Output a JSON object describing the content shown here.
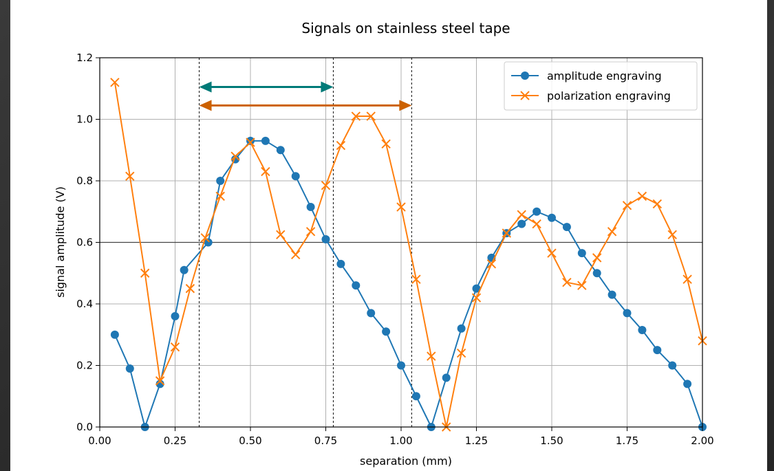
{
  "chart_data": {
    "type": "line",
    "title": "Signals on stainless steel tape",
    "xlabel": "separation (mm)",
    "ylabel": "signal amplitude (V)",
    "xlim": [
      0.0,
      2.0
    ],
    "ylim": [
      0.0,
      1.2
    ],
    "xticks": [
      "0.00",
      "0.25",
      "0.50",
      "0.75",
      "1.00",
      "1.25",
      "1.50",
      "1.75",
      "2.00"
    ],
    "yticks": [
      "0.0",
      "0.2",
      "0.4",
      "0.6",
      "0.8",
      "1.0",
      "1.2"
    ],
    "grid": true,
    "legend_position": "top-right",
    "reference_line_y": 0.6,
    "vertical_dashed_lines_x": [
      0.33,
      0.775,
      1.035
    ],
    "arrows": [
      {
        "x1": 0.33,
        "x2": 0.775,
        "y": 1.105,
        "color": "#007a78"
      },
      {
        "x1": 0.33,
        "x2": 1.035,
        "y": 1.045,
        "color": "#cc6100"
      }
    ],
    "series": [
      {
        "name": "amplitude engraving",
        "color": "#1f77b4",
        "marker": "o",
        "x": [
          0.05,
          0.1,
          0.15,
          0.2,
          0.25,
          0.28,
          0.36,
          0.4,
          0.45,
          0.5,
          0.55,
          0.6,
          0.65,
          0.7,
          0.75,
          0.8,
          0.85,
          0.9,
          0.95,
          1.0,
          1.05,
          1.1,
          1.15,
          1.2,
          1.25,
          1.3,
          1.35,
          1.4,
          1.45,
          1.5,
          1.55,
          1.6,
          1.65,
          1.7,
          1.75,
          1.8,
          1.85,
          1.9,
          1.95,
          2.0
        ],
        "y": [
          0.3,
          0.19,
          0.0,
          0.14,
          0.36,
          0.51,
          0.6,
          0.8,
          0.87,
          0.93,
          0.93,
          0.9,
          0.815,
          0.715,
          0.61,
          0.53,
          0.46,
          0.37,
          0.31,
          0.2,
          0.1,
          0.0,
          0.16,
          0.32,
          0.45,
          0.55,
          0.63,
          0.66,
          0.7,
          0.68,
          0.65,
          0.565,
          0.5,
          0.43,
          0.37,
          0.315,
          0.25,
          0.2,
          0.14,
          0.0
        ]
      },
      {
        "name": "polarization engraving",
        "color": "#ff7f0e",
        "marker": "x",
        "x": [
          0.05,
          0.1,
          0.15,
          0.2,
          0.25,
          0.3,
          0.35,
          0.4,
          0.45,
          0.5,
          0.55,
          0.6,
          0.65,
          0.7,
          0.75,
          0.8,
          0.85,
          0.9,
          0.95,
          1.0,
          1.05,
          1.1,
          1.15,
          1.2,
          1.25,
          1.3,
          1.35,
          1.4,
          1.45,
          1.5,
          1.55,
          1.6,
          1.65,
          1.7,
          1.75,
          1.8,
          1.85,
          1.9,
          1.95,
          2.0
        ],
        "y": [
          1.12,
          0.815,
          0.5,
          0.15,
          0.26,
          0.45,
          0.615,
          0.75,
          0.88,
          0.925,
          0.83,
          0.625,
          0.56,
          0.635,
          0.785,
          0.915,
          1.01,
          1.01,
          0.92,
          0.715,
          0.48,
          0.23,
          0.0,
          0.24,
          0.42,
          0.53,
          0.63,
          0.69,
          0.66,
          0.565,
          0.47,
          0.46,
          0.55,
          0.635,
          0.72,
          0.75,
          0.725,
          0.625,
          0.48,
          0.28
        ]
      }
    ]
  }
}
